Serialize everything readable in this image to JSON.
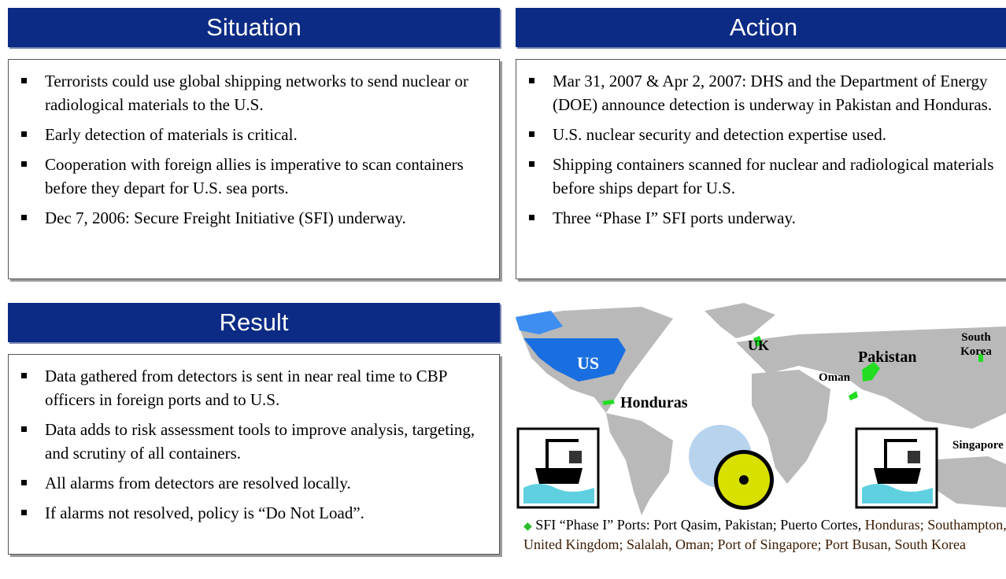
{
  "situation": {
    "title": "Situation",
    "bullets": [
      "Terrorists could use global shipping networks to send nuclear or radiological materials to the U.S.",
      "Early detection of materials is critical.",
      "Cooperation with foreign allies is imperative to scan containers before they depart for U.S. sea ports.",
      "Dec 7, 2006:  Secure Freight Initiative (SFI) underway."
    ]
  },
  "action": {
    "title": "Action",
    "bullets": [
      "Mar 31, 2007 & Apr 2, 2007:  DHS and the Department of Energy (DOE) announce detection is underway in Pakistan and Honduras.",
      "U.S. nuclear security and detection expertise used.",
      "Shipping containers scanned for nuclear and radiological materials before ships depart for U.S.",
      "Three “Phase I” SFI ports underway."
    ]
  },
  "result": {
    "title": "Result",
    "bullets": [
      "Data gathered from detectors is sent in near real time to CBP officers in foreign ports and to U.S.",
      "Data adds to risk assessment tools to improve analysis, targeting, and scrutiny of all containers.",
      "All alarms from detectors are resolved locally.",
      "If alarms not resolved, policy is “Do Not Load”."
    ]
  },
  "map": {
    "labels": {
      "uk": "UK",
      "us": "US",
      "pakistan": "Pakistan",
      "south_korea": "South Korea",
      "oman": "Oman",
      "honduras": "Honduras",
      "singapore": "Singapore"
    }
  },
  "caption": {
    "lead": "SFI “Phase I” Ports:  Port Qasim, Pakistan; Puerto Cortes,",
    "rest": "Honduras; Southampton, United Kingdom; Salalah, Oman; Port of Singapore; Port Busan, South Korea"
  }
}
